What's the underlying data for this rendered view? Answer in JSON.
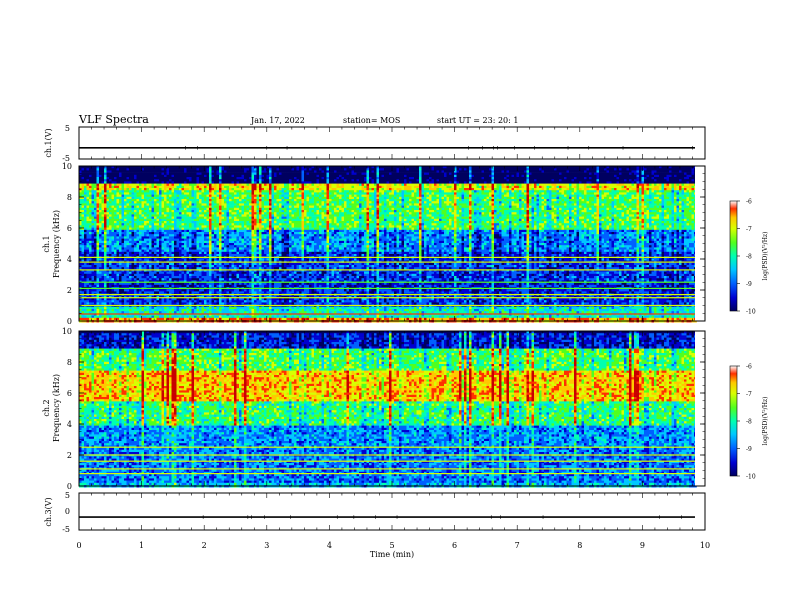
{
  "header": {
    "title": "VLF Spectra",
    "date": "Jan. 17, 2022",
    "station": "station= MOS",
    "start": "start  UT  =   23: 20: 1"
  },
  "colors": {
    "colormap": [
      "#000060",
      "#0000d0",
      "#0060ff",
      "#00c8ff",
      "#00ffb0",
      "#50ff20",
      "#d8ff00",
      "#ffc800",
      "#ff3000",
      "#c80000"
    ],
    "axis": "#000000"
  },
  "chart_data": [
    {
      "type": "line",
      "panel": "ch1-waveform",
      "ylabel": "ch.1(V)",
      "ylim": [
        -5,
        5
      ],
      "yticks": [
        "5",
        "-5"
      ],
      "x_range": [
        0,
        9.84
      ],
      "series": [
        {
          "values": [
            -1.5,
            -1.5
          ]
        }
      ]
    },
    {
      "type": "heatmap",
      "panel": "ch1-spectrogram",
      "ylabel": "ch.1",
      "ylabel2": "Frequency (kHz)",
      "ylim": [
        0,
        10
      ],
      "yticks": [
        "0",
        "2",
        "4",
        "6",
        "8",
        "10"
      ],
      "colorbar": {
        "label": "log(PSD)(V²/Hz)",
        "range": [
          -10,
          -6
        ],
        "ticks": [
          "-6",
          "-7",
          "-8",
          "-9",
          "-10"
        ]
      },
      "bands": [
        {
          "f": [
            0,
            0.3
          ],
          "v": -6.8
        },
        {
          "f": [
            0.3,
            1.0
          ],
          "v": -8.3
        },
        {
          "f": [
            1.0,
            1.8
          ],
          "v": -9.2
        },
        {
          "f": [
            1.8,
            2.6
          ],
          "v": -9.3
        },
        {
          "f": [
            2.6,
            4.5
          ],
          "v": -9.2
        },
        {
          "f": [
            4.5,
            6.0
          ],
          "v": -8.8
        },
        {
          "f": [
            6.0,
            8.5
          ],
          "v": -7.9
        },
        {
          "f": [
            8.5,
            9.0
          ],
          "v": -7.2
        },
        {
          "f": [
            9.0,
            10.0
          ],
          "v": -9.9
        }
      ],
      "lines_khz": [
        0.45,
        1.0,
        1.5,
        1.7,
        2.1,
        2.5,
        3.3,
        3.8,
        4.1
      ]
    },
    {
      "type": "heatmap",
      "panel": "ch2-spectrogram",
      "ylabel": "ch.2",
      "ylabel2": "Frequency (kHz)",
      "ylim": [
        0,
        10
      ],
      "yticks": [
        "0",
        "2",
        "4",
        "6",
        "8",
        "10"
      ],
      "colorbar": {
        "label": "log(PSD)(V²/Hz)",
        "range": [
          -10,
          -6
        ],
        "ticks": [
          "-6",
          "-7",
          "-8",
          "-9",
          "-10"
        ]
      },
      "bands": [
        {
          "f": [
            0,
            0.3
          ],
          "v": -8.6
        },
        {
          "f": [
            0.3,
            2.5
          ],
          "v": -8.9
        },
        {
          "f": [
            2.5,
            4.0
          ],
          "v": -8.8
        },
        {
          "f": [
            4.0,
            5.5
          ],
          "v": -8.0
        },
        {
          "f": [
            5.5,
            7.5
          ],
          "v": -7.0
        },
        {
          "f": [
            7.5,
            9.0
          ],
          "v": -7.9
        },
        {
          "f": [
            9.0,
            10.0
          ],
          "v": -9.3
        }
      ],
      "lines_khz": [
        0.8,
        1.1,
        1.6,
        2.0,
        2.5
      ]
    },
    {
      "type": "line",
      "panel": "ch3-waveform",
      "ylabel": "ch.3(V)",
      "ylim": [
        -5,
        5
      ],
      "yticks": [
        "5",
        "0",
        "-5"
      ],
      "x_range": [
        0,
        9.84
      ],
      "series": [
        {
          "values": [
            -1.5,
            -1.5
          ]
        }
      ]
    }
  ],
  "x_axis": {
    "label": "Time  (min)",
    "ticks": [
      "0",
      "1",
      "2",
      "3",
      "4",
      "5",
      "6",
      "7",
      "8",
      "9",
      "10"
    ],
    "range": [
      0,
      10
    ]
  }
}
